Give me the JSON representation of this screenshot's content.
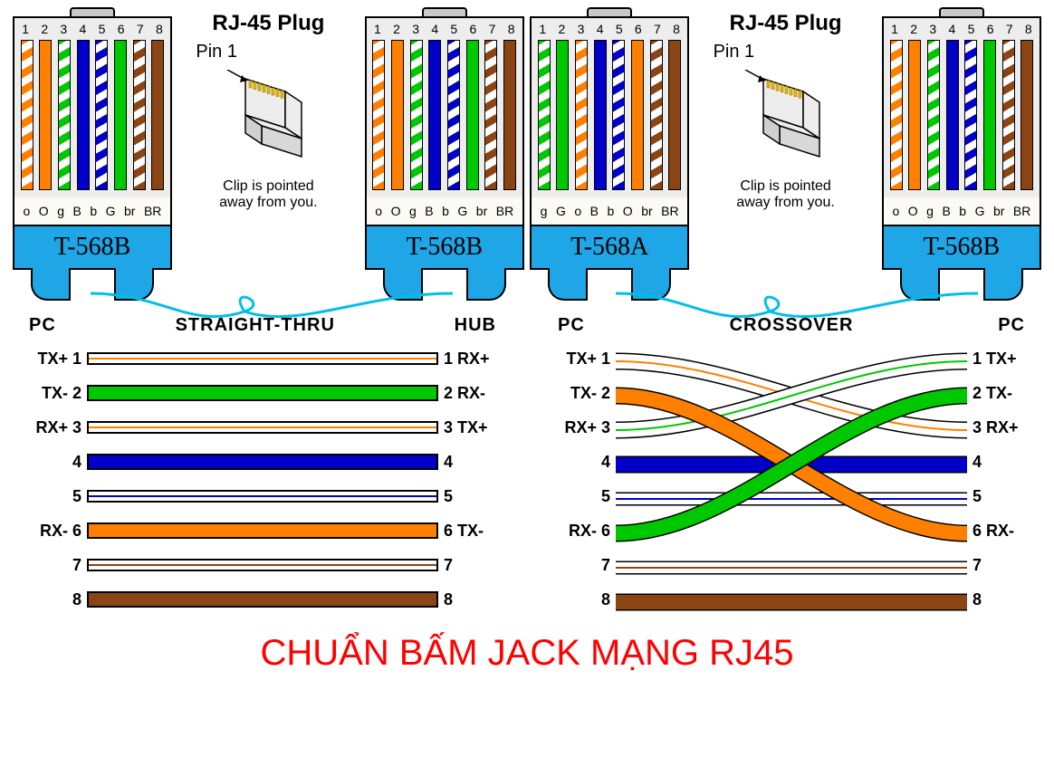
{
  "colors": {
    "orange": "#ff7f00",
    "green": "#00c800",
    "blue": "#0000c8",
    "brown": "#8b4513",
    "label_bg": "#1ea6e6",
    "cable": "#00bfe6",
    "title_red": "#ff0000"
  },
  "pin_numbers": [
    "1",
    "2",
    "3",
    "4",
    "5",
    "6",
    "7",
    "8"
  ],
  "wire_standard": {
    "T568B": [
      {
        "c": "orange",
        "striped": true,
        "code": "o"
      },
      {
        "c": "orange",
        "striped": false,
        "code": "O"
      },
      {
        "c": "green",
        "striped": true,
        "code": "g"
      },
      {
        "c": "blue",
        "striped": false,
        "code": "B"
      },
      {
        "c": "blue",
        "striped": true,
        "code": "b"
      },
      {
        "c": "green",
        "striped": false,
        "code": "G"
      },
      {
        "c": "brown",
        "striped": true,
        "code": "br"
      },
      {
        "c": "brown",
        "striped": false,
        "code": "BR"
      }
    ],
    "T568A": [
      {
        "c": "green",
        "striped": true,
        "code": "g"
      },
      {
        "c": "green",
        "striped": false,
        "code": "G"
      },
      {
        "c": "orange",
        "striped": true,
        "code": "o"
      },
      {
        "c": "blue",
        "striped": false,
        "code": "B"
      },
      {
        "c": "blue",
        "striped": true,
        "code": "b"
      },
      {
        "c": "orange",
        "striped": false,
        "code": "O"
      },
      {
        "c": "brown",
        "striped": true,
        "code": "br"
      },
      {
        "c": "brown",
        "striped": false,
        "code": "BR"
      }
    ]
  },
  "connectors": [
    {
      "label": "T-568B",
      "standard": "T568B"
    },
    {
      "label": "T-568B",
      "standard": "T568B"
    },
    {
      "label": "T-568A",
      "standard": "T568A"
    },
    {
      "label": "T-568B",
      "standard": "T568B"
    }
  ],
  "center_block": {
    "title": "RJ-45 Plug",
    "pin_label": "Pin 1",
    "clip_note_l1": "Clip is pointed",
    "clip_note_l2": "away from you."
  },
  "straight_thru": {
    "header_left": "PC",
    "header_mid": "STRAIGHT-THRU",
    "header_right": "HUB",
    "rows": [
      {
        "left": "TX+ 1",
        "right": "1 RX+",
        "c": "orange",
        "striped": true,
        "thick": false
      },
      {
        "left": "TX- 2",
        "right": "2 RX-",
        "c": "green",
        "striped": false,
        "thick": true,
        "override": "#00c800"
      },
      {
        "left": "RX+ 3",
        "right": "3 TX+",
        "c": "orange",
        "striped": true,
        "thick": false,
        "override_stripe": "#ff7f00"
      },
      {
        "left": "4",
        "right": "4",
        "c": "blue",
        "striped": false,
        "thick": true
      },
      {
        "left": "5",
        "right": "5",
        "c": "blue",
        "striped": true,
        "thick": false
      },
      {
        "left": "RX- 6",
        "right": "6 TX-",
        "c": "orange",
        "striped": false,
        "thick": true
      },
      {
        "left": "7",
        "right": "7",
        "c": "brown",
        "striped": true,
        "thick": false
      },
      {
        "left": "8",
        "right": "8",
        "c": "brown",
        "striped": false,
        "thick": true
      }
    ]
  },
  "crossover": {
    "header_left": "PC",
    "header_mid": "CROSSOVER",
    "header_right": "PC",
    "rows_left": [
      {
        "l": "TX+ 1"
      },
      {
        "l": "TX- 2"
      },
      {
        "l": "RX+ 3"
      },
      {
        "l": "4"
      },
      {
        "l": "5"
      },
      {
        "l": "RX- 6"
      },
      {
        "l": "7"
      },
      {
        "l": "8"
      }
    ],
    "rows_right": [
      {
        "r": "1 TX+"
      },
      {
        "r": "2 TX-"
      },
      {
        "r": "3 RX+"
      },
      {
        "r": "4"
      },
      {
        "r": "5"
      },
      {
        "r": "6 RX-"
      },
      {
        "r": "7"
      },
      {
        "r": "8"
      }
    ],
    "strands": [
      {
        "from": 1,
        "to": 3,
        "c": "orange",
        "thick": true,
        "striped": true
      },
      {
        "from": 2,
        "to": 6,
        "c": "orange",
        "thick": true,
        "striped": false
      },
      {
        "from": 3,
        "to": 1,
        "c": "green",
        "thick": true,
        "striped": true
      },
      {
        "from": 4,
        "to": 4,
        "c": "blue",
        "thick": true,
        "striped": false
      },
      {
        "from": 5,
        "to": 5,
        "c": "blue",
        "thick": false,
        "striped": true
      },
      {
        "from": 6,
        "to": 2,
        "c": "green",
        "thick": true,
        "striped": false
      },
      {
        "from": 7,
        "to": 7,
        "c": "brown",
        "thick": false,
        "striped": true
      },
      {
        "from": 8,
        "to": 8,
        "c": "brown",
        "thick": true,
        "striped": false
      }
    ]
  },
  "footer": "CHUẨN BẤM JACK MẠNG RJ45"
}
